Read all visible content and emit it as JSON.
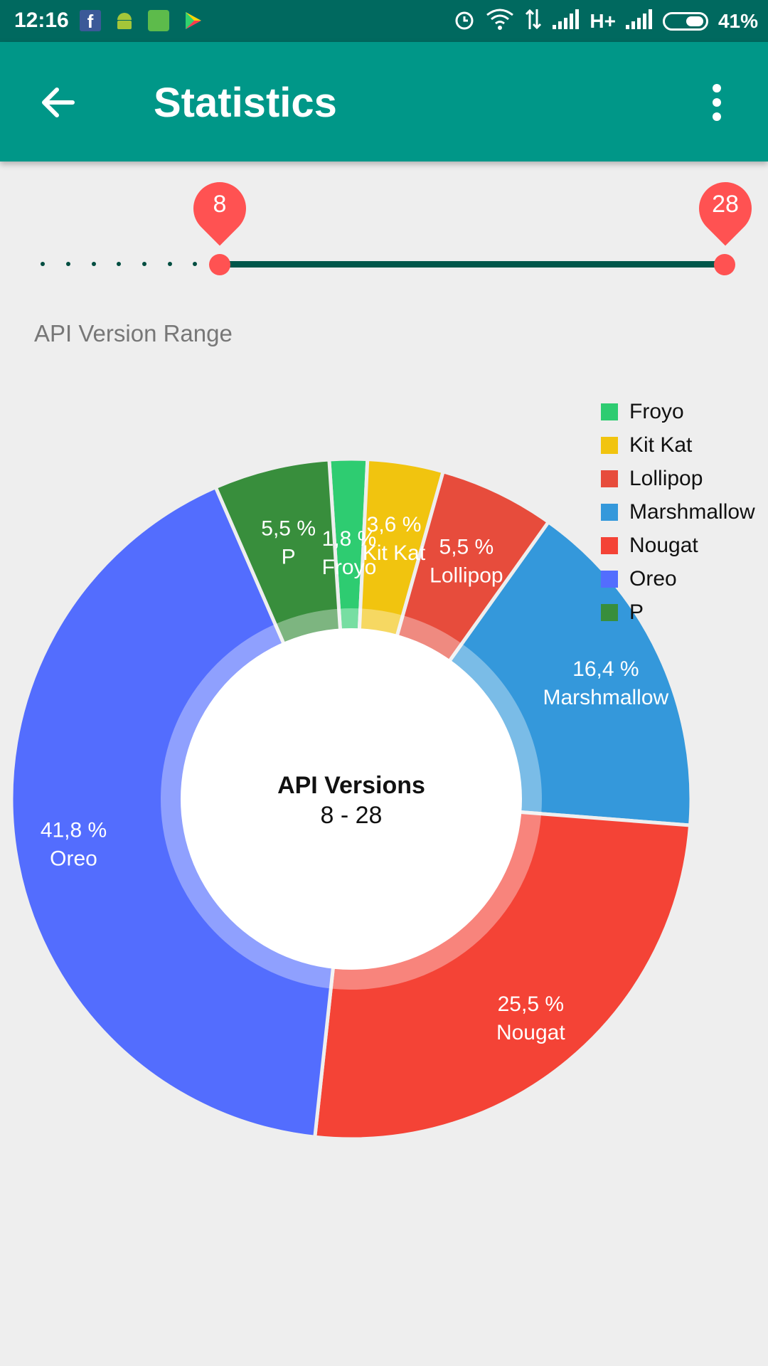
{
  "status_bar": {
    "time": "12:16",
    "network": "H+",
    "battery": "41%",
    "icons": [
      "facebook-icon",
      "android-icon",
      "app-icon",
      "play-store-icon",
      "alarm-icon",
      "wifi-icon",
      "data-icon",
      "signal-icon",
      "signal-icon-2",
      "battery-icon"
    ]
  },
  "app_bar": {
    "title": "Statistics",
    "back_icon": "arrow-back-icon",
    "menu_icon": "more-vert-icon",
    "background": "#009788"
  },
  "range_slider": {
    "min_value": "8",
    "max_value": "28",
    "accent": "#ff5252"
  },
  "range_label": "API Version Range",
  "chart_data": {
    "type": "pie",
    "donut": true,
    "center_title": "API Versions",
    "center_subtitle": "8 - 28",
    "legend_position": "top-right",
    "slices": [
      {
        "name": "Froyo",
        "value": 1.8,
        "label": "1,8 %",
        "color": "#2ecc71"
      },
      {
        "name": "Kit Kat",
        "value": 3.6,
        "label": "3,6 %",
        "color": "#f1c40f"
      },
      {
        "name": "Lollipop",
        "value": 5.5,
        "label": "5,5 %",
        "color": "#e74c3c"
      },
      {
        "name": "Marshmallow",
        "value": 16.4,
        "label": "16,4 %",
        "color": "#3498db"
      },
      {
        "name": "Nougat",
        "value": 25.5,
        "label": "25,5 %",
        "color": "#f44336"
      },
      {
        "name": "Oreo",
        "value": 41.8,
        "label": "41,8 %",
        "color": "#536dfe"
      },
      {
        "name": "P",
        "value": 5.5,
        "label": "5,5 %",
        "color": "#388e3c"
      }
    ]
  }
}
